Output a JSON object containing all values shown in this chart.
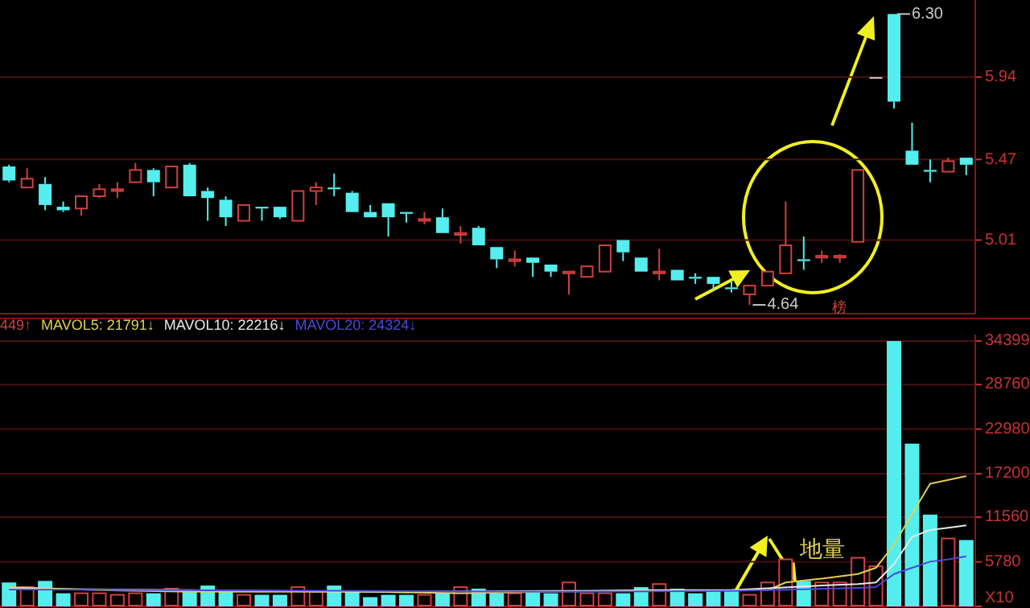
{
  "chart_data": [
    {
      "type": "candlestick",
      "categories": [
        null,
        null,
        null,
        null,
        null,
        null,
        null,
        null,
        null,
        null,
        null,
        null,
        null,
        null,
        null,
        null,
        null,
        null,
        null,
        null,
        null,
        null,
        null,
        null,
        null,
        null,
        null,
        null,
        null,
        null,
        null,
        null,
        null,
        null,
        null,
        null,
        null,
        null,
        null,
        null,
        null,
        null,
        null,
        null,
        null,
        null,
        null,
        null,
        null,
        null,
        null,
        null,
        null,
        null
      ],
      "ohlc": [
        [
          5.43,
          5.44,
          5.34,
          5.35
        ],
        [
          5.31,
          5.42,
          5.31,
          5.36
        ],
        [
          5.33,
          5.37,
          5.18,
          5.21
        ],
        [
          5.2,
          5.23,
          5.17,
          5.18
        ],
        [
          5.19,
          5.26,
          5.15,
          5.26
        ],
        [
          5.26,
          5.33,
          5.25,
          5.3
        ],
        [
          5.29,
          5.34,
          5.25,
          5.3
        ],
        [
          5.34,
          5.45,
          5.34,
          5.41
        ],
        [
          5.41,
          5.42,
          5.26,
          5.34
        ],
        [
          5.31,
          5.43,
          5.31,
          5.43
        ],
        [
          5.44,
          5.45,
          5.26,
          5.26
        ],
        [
          5.29,
          5.31,
          5.12,
          5.25
        ],
        [
          5.24,
          5.26,
          5.09,
          5.14
        ],
        [
          5.12,
          5.21,
          5.12,
          5.21
        ],
        [
          5.2,
          5.2,
          5.12,
          5.19
        ],
        [
          5.2,
          5.2,
          5.13,
          5.14
        ],
        [
          5.12,
          5.29,
          5.12,
          5.29
        ],
        [
          5.29,
          5.34,
          5.21,
          5.31
        ],
        [
          5.31,
          5.39,
          5.26,
          5.3
        ],
        [
          5.28,
          5.29,
          5.17,
          5.17
        ],
        [
          5.17,
          5.21,
          5.14,
          5.14
        ],
        [
          5.22,
          5.22,
          5.03,
          5.14
        ],
        [
          5.17,
          5.17,
          5.11,
          5.16
        ],
        [
          5.12,
          5.17,
          5.1,
          5.13
        ],
        [
          5.14,
          5.19,
          5.05,
          5.05
        ],
        [
          5.04,
          5.09,
          4.99,
          5.05
        ],
        [
          5.08,
          5.09,
          4.98,
          4.98
        ],
        [
          4.97,
          4.97,
          4.85,
          4.9
        ],
        [
          4.89,
          4.95,
          4.86,
          4.9
        ],
        [
          4.91,
          4.91,
          4.8,
          4.88
        ],
        [
          4.87,
          4.87,
          4.8,
          4.83
        ],
        [
          4.82,
          4.83,
          4.7,
          4.83
        ],
        [
          4.8,
          4.86,
          4.8,
          4.86
        ],
        [
          4.83,
          4.98,
          4.83,
          4.98
        ],
        [
          5.01,
          5.01,
          4.89,
          4.94
        ],
        [
          4.91,
          4.91,
          4.83,
          4.83
        ],
        [
          4.82,
          4.96,
          4.78,
          4.83
        ],
        [
          4.84,
          4.84,
          4.78,
          4.78
        ],
        [
          4.8,
          4.82,
          4.76,
          4.79
        ],
        [
          4.8,
          4.8,
          4.72,
          4.76
        ],
        [
          4.74,
          4.78,
          4.71,
          4.73
        ],
        [
          4.7,
          4.75,
          4.64,
          4.75
        ],
        [
          4.75,
          4.83,
          4.75,
          4.83
        ],
        [
          4.82,
          5.23,
          4.82,
          4.98
        ],
        [
          4.9,
          5.03,
          4.84,
          4.89
        ],
        [
          4.91,
          4.95,
          4.88,
          4.92
        ],
        [
          4.91,
          4.93,
          4.88,
          4.92
        ],
        [
          5.0,
          5.41,
          5.0,
          5.41
        ],
        [
          5.94,
          5.94,
          5.94,
          5.94
        ],
        [
          6.3,
          6.3,
          5.76,
          5.8
        ],
        [
          5.52,
          5.68,
          5.44,
          5.44
        ],
        [
          5.41,
          5.47,
          5.34,
          5.4
        ],
        [
          5.4,
          5.48,
          5.4,
          5.46
        ],
        [
          5.48,
          5.48,
          5.38,
          5.44
        ]
      ],
      "colors": [
        "#55eeee",
        "#d04040",
        "#55eeee",
        "#55eeee",
        "#d04040",
        "#d04040",
        "#d04040",
        "#d04040",
        "#55eeee",
        "#d04040",
        "#55eeee",
        "#55eeee",
        "#55eeee",
        "#d04040",
        "#55eeee",
        "#55eeee",
        "#d04040",
        "#d04040",
        "#55eeee",
        "#55eeee",
        "#55eeee",
        "#55eeee",
        "#55eeee",
        "#d04040",
        "#55eeee",
        "#d04040",
        "#55eeee",
        "#55eeee",
        "#d04040",
        "#55eeee",
        "#55eeee",
        "#d04040",
        "#d04040",
        "#d04040",
        "#55eeee",
        "#55eeee",
        "#d04040",
        "#55eeee",
        "#55eeee",
        "#55eeee",
        "#55eeee",
        "#d04040",
        "#d04040",
        "#d04040",
        "#55eeee",
        "#d04040",
        "#d04040",
        "#d04040",
        "#c8c8c8",
        "#55eeee",
        "#55eeee",
        "#55eeee",
        "#d04040",
        "#55eeee"
      ],
      "ylim": [
        4.59,
        6.38
      ],
      "yticks": [
        5.01,
        5.47,
        5.94
      ],
      "grid": "y",
      "annotations": [
        "6.30",
        "4.64",
        "榜"
      ]
    },
    {
      "type": "bar",
      "categories": [
        null,
        null,
        null,
        null,
        null,
        null,
        null,
        null,
        null,
        null,
        null,
        null,
        null,
        null,
        null,
        null,
        null,
        null,
        null,
        null,
        null,
        null,
        null,
        null,
        null,
        null,
        null,
        null,
        null,
        null,
        null,
        null,
        null,
        null,
        null,
        null,
        null,
        null,
        null,
        null,
        null,
        null,
        null,
        null,
        null,
        null,
        null,
        null,
        null,
        null,
        null,
        null,
        null,
        null
      ],
      "series": [
        {
          "type": "bar",
          "color": "#55eeee",
          "colors": [
            "#55eeee",
            "#d04040",
            "#55eeee",
            "#55eeee",
            "#d04040",
            "#d04040",
            "#d04040",
            "#d04040",
            "#55eeee",
            "#d04040",
            "#55eeee",
            "#55eeee",
            "#55eeee",
            "#d04040",
            "#55eeee",
            "#55eeee",
            "#d04040",
            "#d04040",
            "#55eeee",
            "#55eeee",
            "#55eeee",
            "#55eeee",
            "#55eeee",
            "#d04040",
            "#55eeee",
            "#d04040",
            "#55eeee",
            "#55eeee",
            "#d04040",
            "#55eeee",
            "#55eeee",
            "#d04040",
            "#d04040",
            "#d04040",
            "#55eeee",
            "#55eeee",
            "#d04040",
            "#55eeee",
            "#55eeee",
            "#55eeee",
            "#55eeee",
            "#d04040",
            "#d04040",
            "#d04040",
            "#55eeee",
            "#d04040",
            "#d04040",
            "#d04040",
            "#d04040",
            "#55eeee",
            "#55eeee",
            "#55eeee",
            "#d04040",
            "#55eeee"
          ],
          "values": [
            3100,
            2500,
            3300,
            1700,
            1700,
            1700,
            1500,
            1700,
            1700,
            2300,
            2100,
            2700,
            2100,
            1500,
            1500,
            1500,
            2500,
            1900,
            2700,
            1900,
            1200,
            1500,
            1500,
            1500,
            1700,
            2500,
            2300,
            1700,
            1700,
            1900,
            1700,
            3100,
            1700,
            1700,
            1700,
            2500,
            2900,
            2300,
            1700,
            2100,
            2100,
            1500,
            3100,
            6100,
            3300,
            3100,
            3100,
            6300,
            5200,
            34399,
            21100,
            11900,
            8800,
            8600
          ]
        },
        {
          "type": "line",
          "name": "MAVOL5: 21791↓",
          "color": "#e0d050",
          "values": [
            2500,
            null,
            null,
            null,
            null,
            2100,
            null,
            null,
            null,
            null,
            1900,
            null,
            null,
            null,
            null,
            1900,
            null,
            null,
            null,
            null,
            1900,
            null,
            null,
            null,
            null,
            1700,
            null,
            null,
            null,
            null,
            1900,
            null,
            null,
            null,
            null,
            2100,
            null,
            null,
            null,
            null,
            2100,
            null,
            2100,
            3100,
            null,
            3600,
            null,
            4200,
            5000,
            8000,
            12000,
            15900,
            16400,
            16900
          ]
        },
        {
          "type": "line",
          "name": "MAVOL10: 22216↓",
          "color": "#e8e8e8",
          "values": [
            2300,
            null,
            null,
            null,
            null,
            null,
            null,
            null,
            null,
            null,
            2100,
            null,
            null,
            null,
            null,
            null,
            null,
            null,
            null,
            null,
            1900,
            null,
            null,
            null,
            null,
            null,
            null,
            null,
            null,
            null,
            null,
            null,
            null,
            null,
            null,
            null,
            null,
            null,
            null,
            null,
            2100,
            null,
            null,
            null,
            null,
            2700,
            null,
            2900,
            3100,
            5500,
            9000,
            9900,
            10200,
            10500
          ]
        },
        {
          "type": "line",
          "name": "MAVOL20: 24324↓",
          "color": "#4a4ad8",
          "values": [
            2200,
            null,
            null,
            null,
            null,
            null,
            null,
            null,
            null,
            null,
            2100,
            null,
            null,
            null,
            null,
            null,
            null,
            null,
            null,
            null,
            2000,
            null,
            null,
            null,
            null,
            null,
            null,
            null,
            null,
            null,
            1900,
            null,
            null,
            null,
            null,
            null,
            null,
            null,
            null,
            null,
            2000,
            null,
            null,
            null,
            null,
            null,
            null,
            2400,
            2500,
            4200,
            5000,
            5800,
            6100,
            6500
          ]
        }
      ],
      "ylim": [
        0,
        35240
      ],
      "yticks": [
        {
          "value": 0,
          "label": "X10"
        },
        5780,
        11560,
        17200,
        22980,
        28760,
        34399
      ],
      "grid": "y",
      "legend": "top left",
      "annotations": [
        "449↑",
        "地量"
      ]
    }
  ]
}
